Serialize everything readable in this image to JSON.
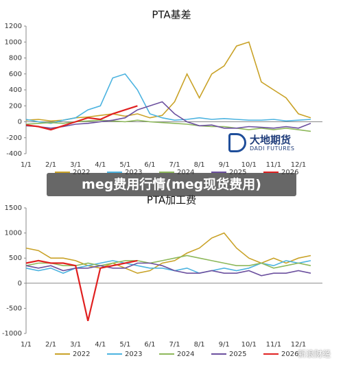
{
  "banner": "meg费用行情(meg现货费用)",
  "logo": {
    "name": "大地期货",
    "subtitle": "DADI FUTURES"
  },
  "watermark": "新浪财经",
  "chart_data": [
    {
      "type": "line",
      "title": "PTA基差",
      "categories": [
        "1/1",
        null,
        "2/1",
        null,
        "3/1",
        null,
        "4/1",
        null,
        "5/1",
        null,
        "6/1",
        null,
        "7/1",
        null,
        "8/1",
        null,
        "9/1",
        null,
        "10/1",
        null,
        "11/1",
        null,
        "12/1",
        null
      ],
      "ylim": [
        -400,
        1200
      ],
      "yticks": [
        -400,
        -200,
        0,
        200,
        400,
        600,
        800,
        1000,
        1200
      ],
      "series": [
        {
          "name": "2022",
          "color": "#c9a227",
          "values": [
            20,
            30,
            10,
            20,
            50,
            60,
            80,
            100,
            70,
            100,
            50,
            80,
            250,
            600,
            300,
            600,
            700,
            950,
            1000,
            500,
            400,
            300,
            100,
            50
          ]
        },
        {
          "name": "2023",
          "color": "#4bb3e0",
          "values": [
            30,
            0,
            -20,
            20,
            50,
            150,
            200,
            550,
            600,
            400,
            100,
            50,
            20,
            30,
            50,
            30,
            40,
            30,
            20,
            20,
            30,
            10,
            20,
            30
          ]
        },
        {
          "name": "2024",
          "color": "#8db85a",
          "values": [
            -30,
            -20,
            -10,
            -20,
            0,
            10,
            20,
            10,
            0,
            20,
            0,
            -10,
            -20,
            -30,
            -50,
            -60,
            -60,
            -80,
            -100,
            -80,
            -100,
            -80,
            -100,
            -120
          ]
        },
        {
          "name": "2025",
          "color": "#6b4f9e",
          "values": [
            -50,
            -60,
            -80,
            -60,
            -30,
            -20,
            0,
            20,
            50,
            150,
            200,
            250,
            100,
            0,
            -50,
            -40,
            -80,
            -80,
            -60,
            -70,
            -80,
            -60,
            -80,
            -20
          ]
        },
        {
          "name": "2026",
          "color": "#e02020",
          "values": [
            -40,
            -60,
            -100,
            -50,
            0,
            50,
            30,
            100,
            150,
            200,
            null,
            null,
            null,
            null,
            null,
            null,
            null,
            null,
            null,
            null,
            null,
            null,
            null,
            null
          ]
        }
      ]
    },
    {
      "type": "line",
      "title": "PTA加工费",
      "categories": [
        "1/1",
        null,
        "2/1",
        null,
        "3/1",
        null,
        "4/1",
        null,
        "5/1",
        null,
        "6/1",
        null,
        "7/1",
        null,
        "8/1",
        null,
        "9/1",
        null,
        "10/1",
        null,
        "11/1",
        null,
        "12/1",
        null
      ],
      "ylim": [
        -1000,
        1500
      ],
      "yticks": [
        -1000,
        -500,
        0,
        500,
        1000,
        1500
      ],
      "series": [
        {
          "name": "2022",
          "color": "#c9a227",
          "values": [
            700,
            650,
            500,
            500,
            450,
            350,
            300,
            400,
            300,
            200,
            250,
            400,
            450,
            600,
            700,
            900,
            1000,
            700,
            500,
            400,
            500,
            400,
            500,
            550
          ]
        },
        {
          "name": "2023",
          "color": "#4bb3e0",
          "values": [
            300,
            250,
            300,
            200,
            300,
            350,
            400,
            450,
            400,
            350,
            300,
            300,
            250,
            300,
            200,
            250,
            300,
            250,
            300,
            400,
            350,
            450,
            400,
            450
          ]
        },
        {
          "name": "2024",
          "color": "#8db85a",
          "values": [
            350,
            400,
            400,
            350,
            350,
            400,
            350,
            400,
            450,
            450,
            400,
            450,
            500,
            550,
            500,
            450,
            400,
            350,
            350,
            400,
            300,
            350,
            400,
            350
          ]
        },
        {
          "name": "2025",
          "color": "#6b4f9e",
          "values": [
            350,
            300,
            350,
            250,
            300,
            300,
            350,
            300,
            300,
            400,
            400,
            350,
            250,
            200,
            200,
            250,
            200,
            200,
            250,
            150,
            200,
            200,
            250,
            200
          ]
        },
        {
          "name": "2026",
          "color": "#e02020",
          "values": [
            400,
            450,
            400,
            400,
            350,
            -750,
            300,
            350,
            400,
            450,
            null,
            null,
            null,
            null,
            null,
            null,
            null,
            null,
            null,
            null,
            null,
            null,
            null,
            null
          ]
        }
      ]
    }
  ]
}
